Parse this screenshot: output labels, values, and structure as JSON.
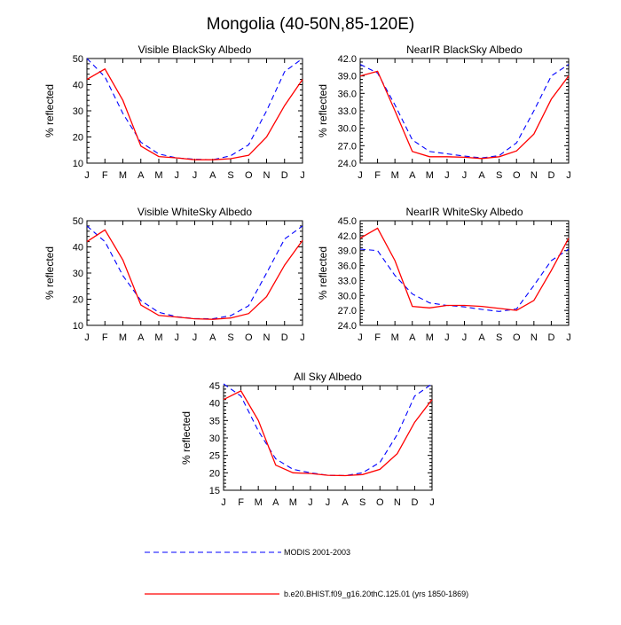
{
  "title": "Mongolia (40-50N,85-120E)",
  "chart_data": [
    {
      "type": "line",
      "title": "Visible BlackSky Albedo",
      "ylabel": "% reflected",
      "categories": [
        "J",
        "F",
        "M",
        "A",
        "M",
        "J",
        "J",
        "A",
        "S",
        "O",
        "N",
        "D",
        "J"
      ],
      "ylim": [
        10,
        50
      ],
      "yticks": [
        "10",
        "20",
        "30",
        "40",
        "50"
      ],
      "series": [
        {
          "name": "MODIS 2001-2003",
          "color": "#0000ff",
          "style": "dashed",
          "values": [
            50,
            43,
            29,
            18,
            13.5,
            12,
            11.5,
            11.3,
            12.8,
            17,
            30,
            45,
            50
          ]
        },
        {
          "name": "b.e20.BHIST.f09_g16.20thC.125.01 (yrs 1850-1869)",
          "color": "#ff0000",
          "style": "solid",
          "values": [
            42,
            46,
            34,
            16.5,
            12.5,
            12,
            11.3,
            11.3,
            11.7,
            13,
            20,
            32,
            42
          ]
        }
      ]
    },
    {
      "type": "line",
      "title": "NearIR BlackSky Albedo",
      "ylabel": "% reflected",
      "categories": [
        "J",
        "F",
        "M",
        "A",
        "M",
        "J",
        "J",
        "A",
        "S",
        "O",
        "N",
        "D",
        "J"
      ],
      "ylim": [
        24,
        42
      ],
      "yticks": [
        "24.0",
        "27.0",
        "30.0",
        "33.0",
        "36.0",
        "39.0",
        "42.0"
      ],
      "series": [
        {
          "name": "MODIS 2001-2003",
          "color": "#0000ff",
          "style": "dashed",
          "values": [
            41,
            39.5,
            34,
            28,
            26,
            25.6,
            25.2,
            24.9,
            25.3,
            27.5,
            33,
            39,
            41
          ]
        },
        {
          "name": "b.e20.BHIST.f09_g16.20thC.125.01 (yrs 1850-1869)",
          "color": "#ff0000",
          "style": "solid",
          "values": [
            39,
            39.8,
            33,
            26,
            25.1,
            25.1,
            25,
            24.8,
            25.1,
            26.1,
            29,
            35,
            39
          ]
        }
      ]
    },
    {
      "type": "line",
      "title": "Visible WhiteSky Albedo",
      "ylabel": "% reflected",
      "categories": [
        "J",
        "F",
        "M",
        "A",
        "M",
        "J",
        "J",
        "A",
        "S",
        "O",
        "N",
        "D",
        "J"
      ],
      "ylim": [
        10,
        50
      ],
      "yticks": [
        "10",
        "20",
        "30",
        "40",
        "50"
      ],
      "series": [
        {
          "name": "MODIS 2001-2003",
          "color": "#0000ff",
          "style": "dashed",
          "values": [
            48,
            42,
            29,
            19.5,
            15,
            13.3,
            12.6,
            12.5,
            13.7,
            17.5,
            30,
            43,
            48
          ]
        },
        {
          "name": "b.e20.BHIST.f09_g16.20thC.125.01 (yrs 1850-1869)",
          "color": "#ff0000",
          "style": "solid",
          "values": [
            42,
            46.5,
            35,
            17.8,
            13.8,
            13.2,
            12.5,
            12.3,
            12.8,
            14.5,
            21,
            33,
            42.5
          ]
        }
      ]
    },
    {
      "type": "line",
      "title": "NearIR WhiteSky Albedo",
      "ylabel": "% reflected",
      "categories": [
        "J",
        "F",
        "M",
        "A",
        "M",
        "J",
        "J",
        "A",
        "S",
        "O",
        "N",
        "D",
        "J"
      ],
      "ylim": [
        24,
        45
      ],
      "yticks": [
        "24.0",
        "27.0",
        "30.0",
        "33.0",
        "36.0",
        "39.0",
        "42.0",
        "45.0"
      ],
      "series": [
        {
          "name": "MODIS 2001-2003",
          "color": "#0000ff",
          "style": "dashed",
          "values": [
            39.3,
            39,
            34,
            30.3,
            28.5,
            28,
            27.7,
            27.2,
            26.8,
            27.3,
            32,
            37,
            39.3
          ]
        },
        {
          "name": "b.e20.BHIST.f09_g16.20thC.125.01 (yrs 1850-1869)",
          "color": "#ff0000",
          "style": "solid",
          "values": [
            41.5,
            43.5,
            37,
            27.8,
            27.5,
            28,
            28,
            27.8,
            27.4,
            27,
            29,
            35,
            41.5
          ]
        }
      ]
    },
    {
      "type": "line",
      "title": "All Sky Albedo",
      "ylabel": "% reflected",
      "categories": [
        "J",
        "F",
        "M",
        "A",
        "M",
        "J",
        "J",
        "A",
        "S",
        "O",
        "N",
        "D",
        "J"
      ],
      "ylim": [
        15,
        45
      ],
      "yticks": [
        "15",
        "20",
        "25",
        "30",
        "35",
        "40",
        "45"
      ],
      "series": [
        {
          "name": "MODIS 2001-2003",
          "color": "#0000ff",
          "style": "dashed",
          "values": [
            45.5,
            42,
            32,
            24,
            21,
            20,
            19.3,
            19.2,
            20,
            23,
            31,
            42,
            45.5
          ]
        },
        {
          "name": "b.e20.BHIST.f09_g16.20thC.125.01 (yrs 1850-1869)",
          "color": "#ff0000",
          "style": "solid",
          "values": [
            41,
            43.5,
            35,
            22.2,
            20,
            19.8,
            19.3,
            19.2,
            19.5,
            21,
            25.5,
            34.5,
            41
          ]
        }
      ]
    }
  ],
  "legend": [
    {
      "label": "MODIS 2001-2003",
      "color": "#0000ff",
      "style": "dashed"
    },
    {
      "label": "b.e20.BHIST.f09_g16.20thC.125.01 (yrs 1850-1869)",
      "color": "#ff0000",
      "style": "solid"
    }
  ]
}
